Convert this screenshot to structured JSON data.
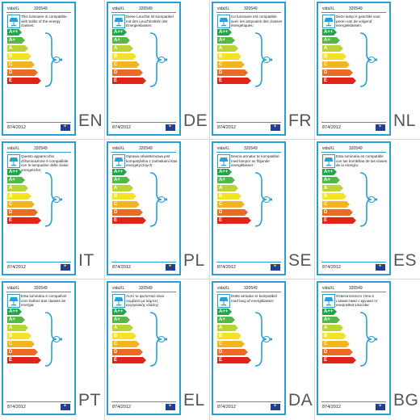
{
  "labels": [
    {
      "lang": "EN",
      "brand": "vidaXL",
      "code": "320549",
      "text": "This luminaire is compatible with bulbs of the energy classes:",
      "reg": "874/2012"
    },
    {
      "lang": "DE",
      "brand": "vidaXL",
      "code": "320549",
      "text": "Diese Leuchte ist kompatibel mit den Leuchtmitteln der Energieklassen:",
      "reg": "874/2012"
    },
    {
      "lang": "FR",
      "brand": "vidaXL",
      "code": "320549",
      "text": "Ce luminaire est compatible avec les ampoules des classes énergétiques:",
      "reg": "874/2012"
    },
    {
      "lang": "NL",
      "brand": "vidaXL",
      "code": "320549",
      "text": "Deze lamp is geschikt voor peren van de volgend energieklassen:",
      "reg": "874/2012"
    },
    {
      "lang": "IT",
      "brand": "vidaXL",
      "code": "320549",
      "text": "Questo apparecchio d'illuminazione è compatibile con le lampadine delle classi energetiche:",
      "reg": "874/2012"
    },
    {
      "lang": "PL",
      "brand": "vidaXL",
      "code": "320549",
      "text": "Oprawa oświetleniowa jest kompatybilna z żarówkami klas energetycznych:",
      "reg": "874/2012"
    },
    {
      "lang": "SE",
      "brand": "vidaXL",
      "code": "320549",
      "text": "Denna armatur är kompatibel med lampor av följande energiklasser:",
      "reg": "874/2012"
    },
    {
      "lang": "ES",
      "brand": "vidaXL",
      "code": "320549",
      "text": "Esta luminaria es compatible con las bombillas de las clases de la energía:",
      "reg": "874/2012"
    },
    {
      "lang": "PT",
      "brand": "vidaXL",
      "code": "320549",
      "text": "Esta luminária é compatível com bulbos das classes de energia:",
      "reg": "874/2012"
    },
    {
      "lang": "EL",
      "brand": "vidaXL",
      "code": "320549",
      "text": "Αυτό το φωτιστικό είναι συμβατό με λάμπες ενεργειακής κλάσης:",
      "reg": "874/2012"
    },
    {
      "lang": "DA",
      "brand": "vidaXL",
      "code": "320549",
      "text": "Dette armatur er kompatibel med lavg af energiklasser:",
      "reg": "874/2012"
    },
    {
      "lang": "BG",
      "brand": "vidaXL",
      "code": "320549",
      "text": "Осветителното тяло е съвместимо с крушки от енергийни класове:",
      "reg": "874/2012"
    }
  ],
  "energy_classes": [
    {
      "label": "A++",
      "color": "#1fa54a"
    },
    {
      "label": "A+",
      "color": "#54b848"
    },
    {
      "label": "A",
      "color": "#bcd433"
    },
    {
      "label": "B",
      "color": "#f7e126"
    },
    {
      "label": "C",
      "color": "#f3b51f"
    },
    {
      "label": "D",
      "color": "#ec6b22"
    },
    {
      "label": "E",
      "color": "#e2231a"
    }
  ],
  "colors": {
    "border": "#2a9fd6",
    "eu": "#1f3f9a"
  },
  "icons": [
    "lamp-icon",
    "bulb-icon",
    "eu-flag-icon"
  ]
}
